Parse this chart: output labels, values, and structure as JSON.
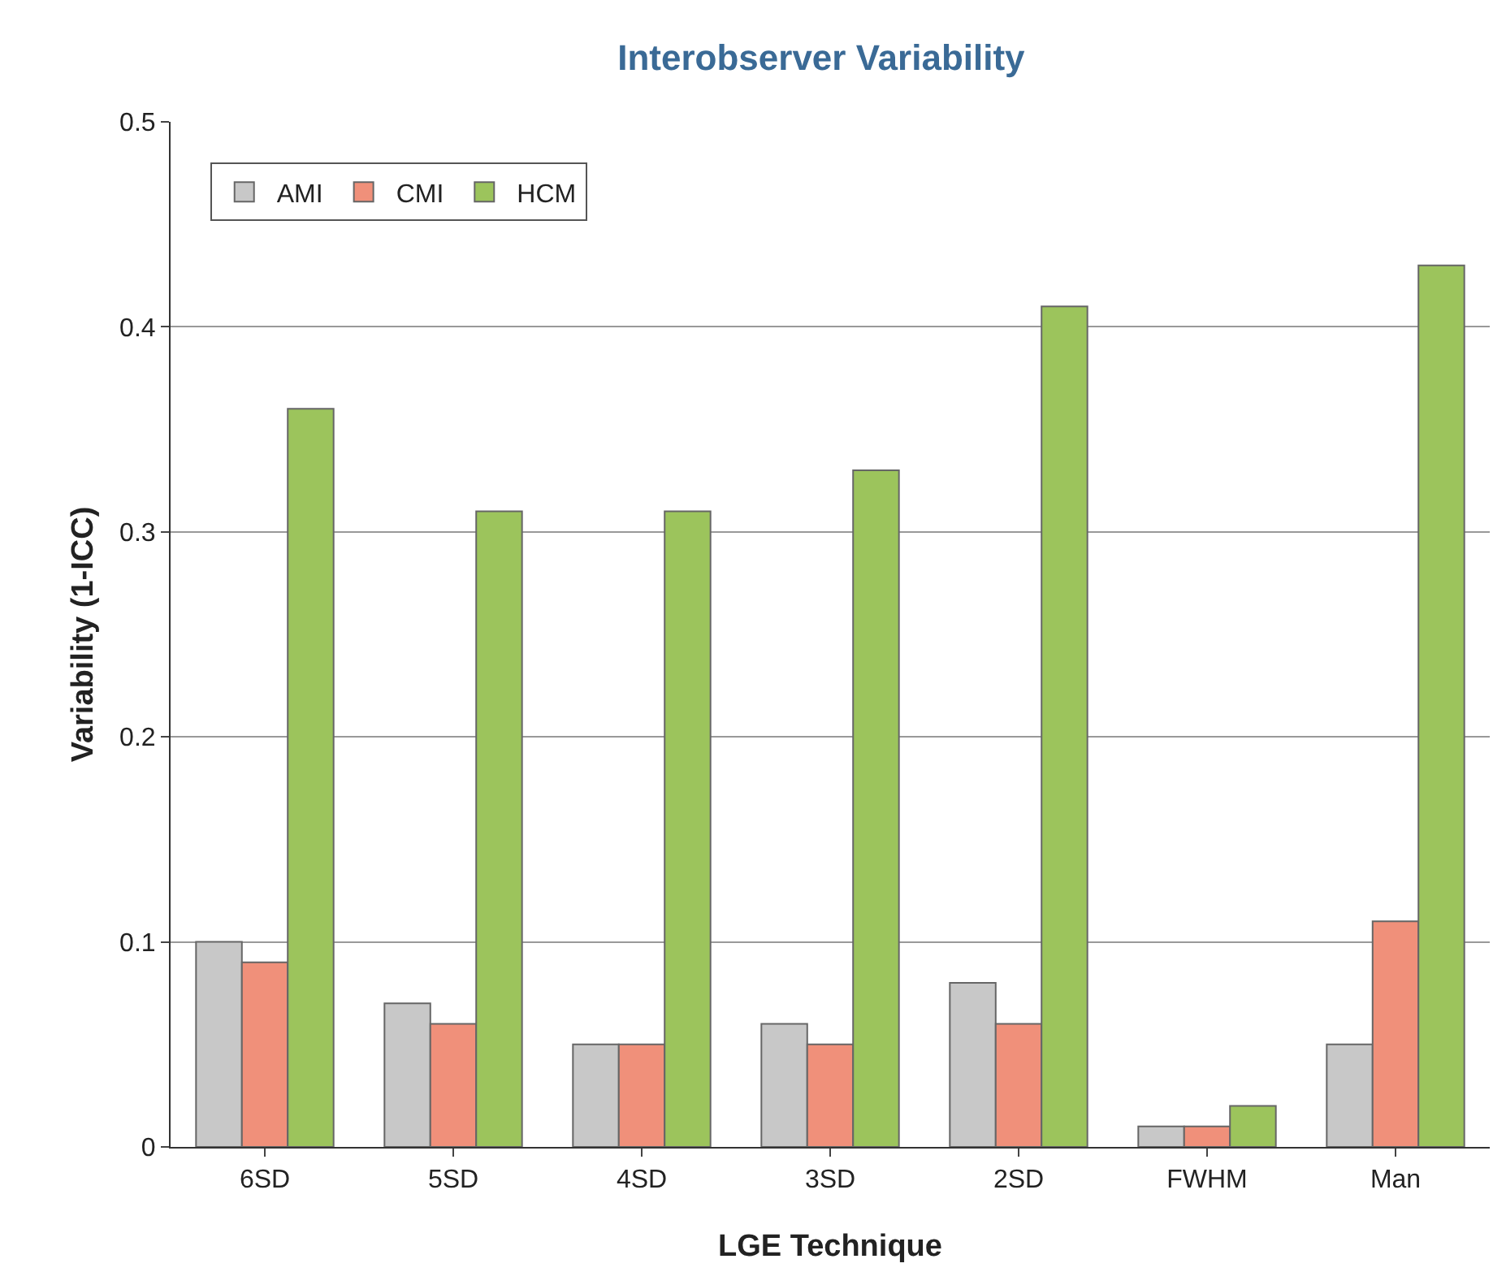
{
  "chart_data": {
    "type": "bar",
    "title": "Interobserver Variability",
    "xlabel": "LGE Technique",
    "ylabel": "Variability (1-ICC)",
    "categories": [
      "6SD",
      "5SD",
      "4SD",
      "3SD",
      "2SD",
      "FWHM",
      "Man"
    ],
    "series": [
      {
        "name": "AMI",
        "color": "#c8c8c8",
        "values": [
          0.1,
          0.07,
          0.05,
          0.06,
          0.08,
          0.01,
          0.05
        ]
      },
      {
        "name": "CMI",
        "color": "#f0907a",
        "values": [
          0.09,
          0.06,
          0.05,
          0.05,
          0.06,
          0.01,
          0.11
        ]
      },
      {
        "name": "HCM",
        "color": "#9cc45c",
        "values": [
          0.36,
          0.31,
          0.31,
          0.33,
          0.41,
          0.02,
          0.43
        ]
      }
    ],
    "ylim": [
      0,
      0.5
    ],
    "yticks": [
      {
        "value": 0,
        "label": "0"
      },
      0.1,
      0.2,
      0.3,
      0.4,
      0.5
    ],
    "grid": "y",
    "legend": "top left"
  }
}
